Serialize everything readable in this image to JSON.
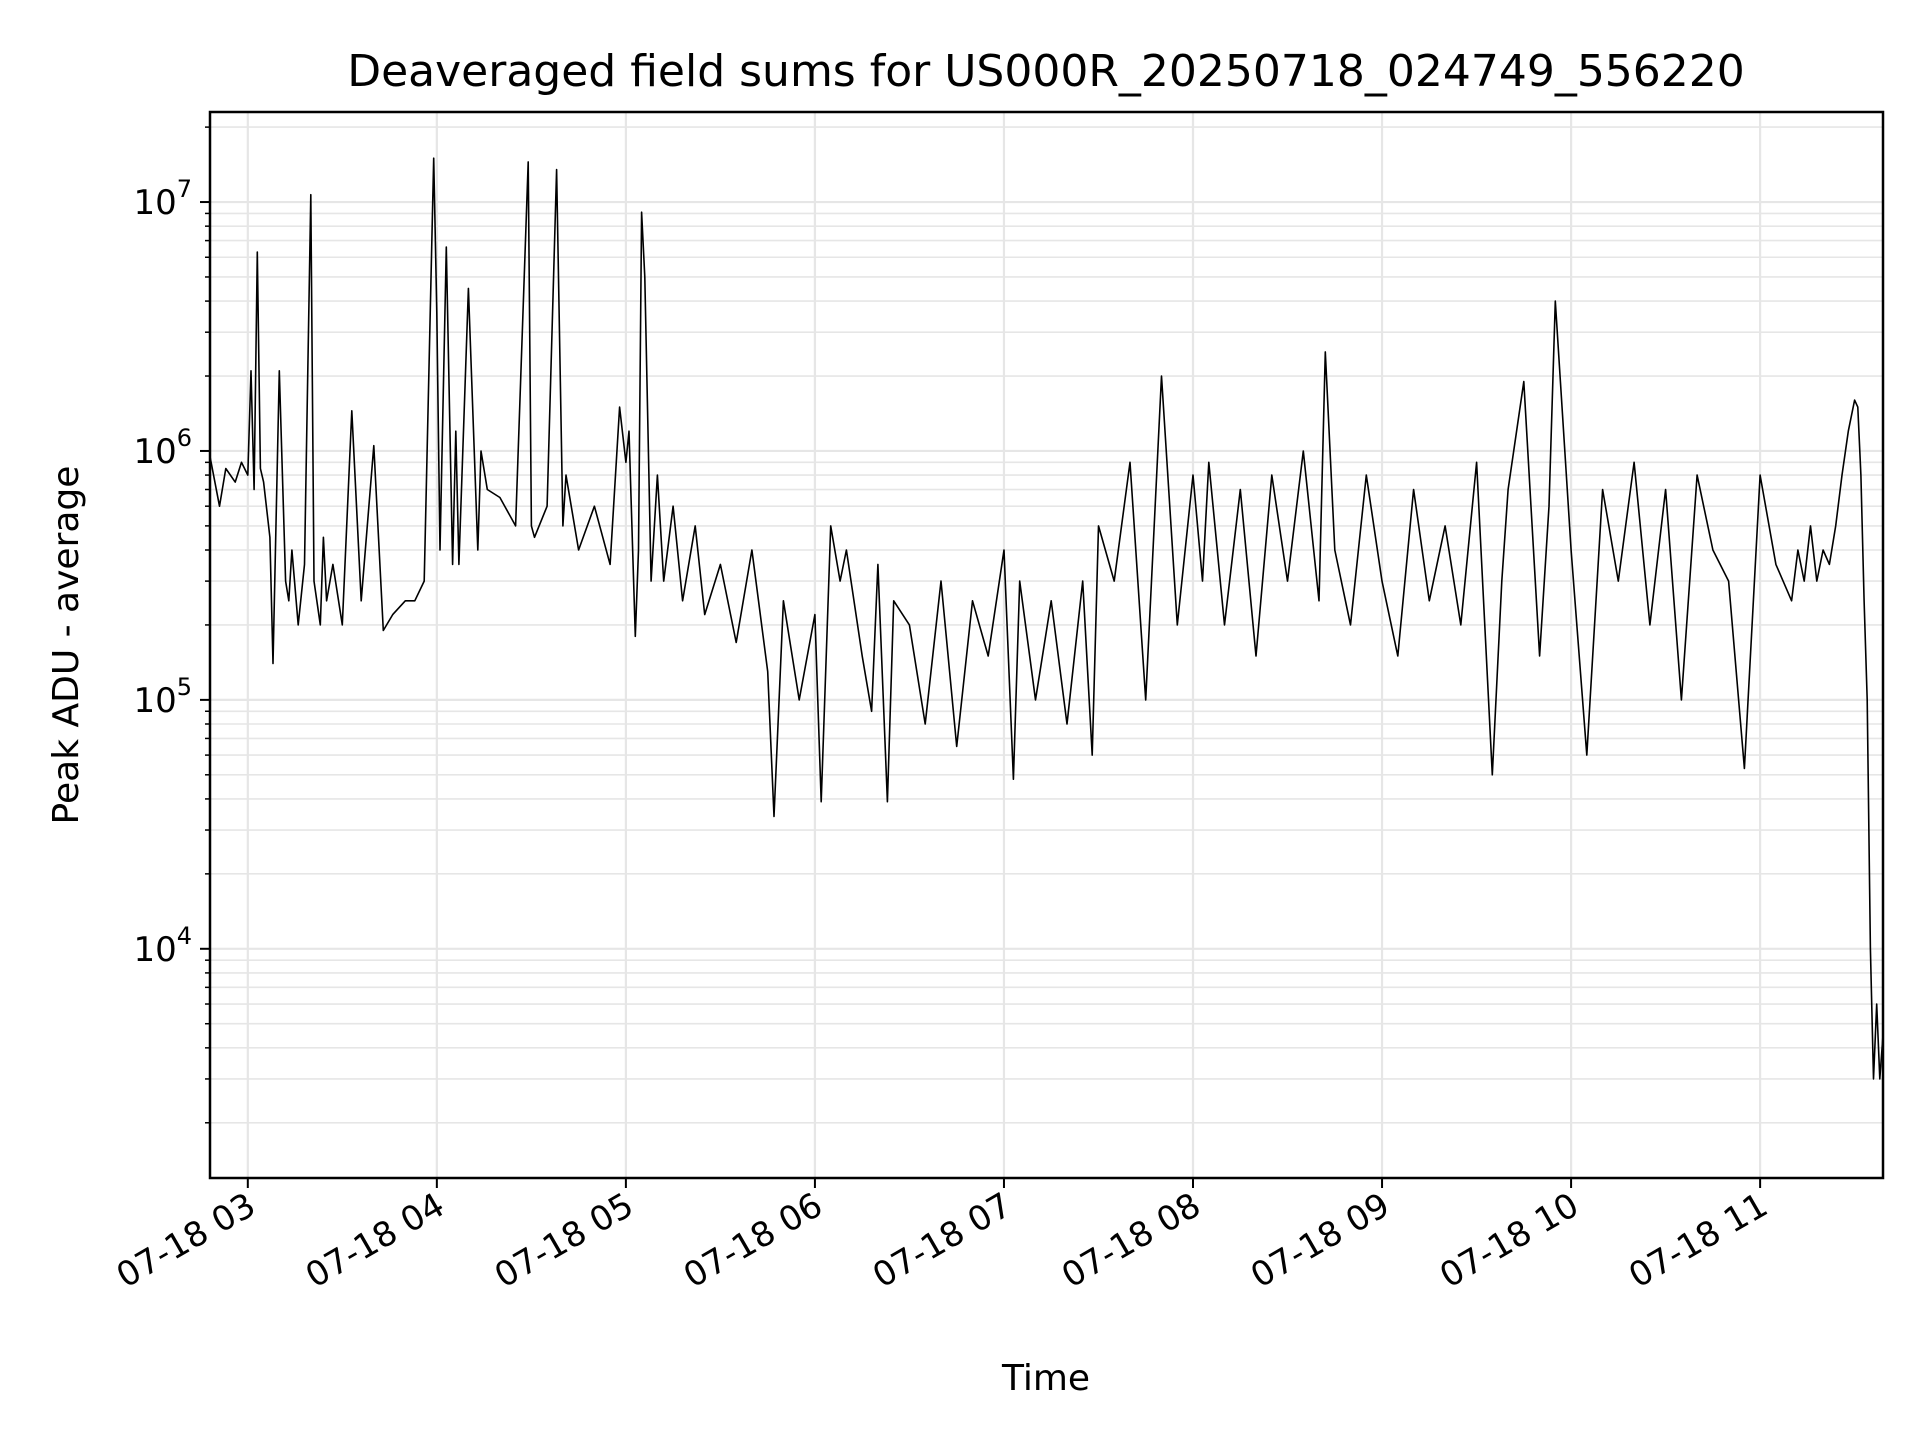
{
  "chart_data": {
    "type": "line",
    "title": "Deaveraged field sums for US000R_20250718_024749_556220",
    "xlabel": "Time",
    "ylabel": "Peak ADU - average",
    "y_scale": "log",
    "ylim": [
      1200,
      23000000
    ],
    "xlim": [
      "07-18 02:48",
      "07-18 11:39"
    ],
    "grid": true,
    "line_color": "#000000",
    "grid_color": "#e6e6e6",
    "x_ticks": [
      {
        "label": "07-18 03",
        "time": "07-18 03:00"
      },
      {
        "label": "07-18 04",
        "time": "07-18 04:00"
      },
      {
        "label": "07-18 05",
        "time": "07-18 05:00"
      },
      {
        "label": "07-18 06",
        "time": "07-18 06:00"
      },
      {
        "label": "07-18 07",
        "time": "07-18 07:00"
      },
      {
        "label": "07-18 08",
        "time": "07-18 08:00"
      },
      {
        "label": "07-18 09",
        "time": "07-18 09:00"
      },
      {
        "label": "07-18 10",
        "time": "07-18 10:00"
      },
      {
        "label": "07-18 11",
        "time": "07-18 11:00"
      }
    ],
    "y_ticks": [
      {
        "base": "10",
        "exp": "4",
        "value": 10000
      },
      {
        "base": "10",
        "exp": "5",
        "value": 100000
      },
      {
        "base": "10",
        "exp": "6",
        "value": 1000000
      },
      {
        "base": "10",
        "exp": "7",
        "value": 10000000
      }
    ],
    "series": [
      {
        "x": [
          "07-18 02:48",
          "07-18 02:51",
          "07-18 02:53",
          "07-18 02:56",
          "07-18 02:58",
          "07-18 03:00",
          "07-18 03:01",
          "07-18 03:02",
          "07-18 03:03",
          "07-18 03:04",
          "07-18 03:05",
          "07-18 03:07",
          "07-18 03:08",
          "07-18 03:10",
          "07-18 03:12",
          "07-18 03:13",
          "07-18 03:14",
          "07-18 03:16",
          "07-18 03:18",
          "07-18 03:20",
          "07-18 03:21",
          "07-18 03:23",
          "07-18 03:24",
          "07-18 03:25",
          "07-18 03:27",
          "07-18 03:30",
          "07-18 03:33",
          "07-18 03:36",
          "07-18 03:40",
          "07-18 03:43",
          "07-18 03:46",
          "07-18 03:50",
          "07-18 03:53",
          "07-18 03:56",
          "07-18 03:59",
          "07-18 04:00",
          "07-18 04:01",
          "07-18 04:03",
          "07-18 04:05",
          "07-18 04:06",
          "07-18 04:07",
          "07-18 04:10",
          "07-18 04:13",
          "07-18 04:14",
          "07-18 04:16",
          "07-18 04:20",
          "07-18 04:25",
          "07-18 04:29",
          "07-18 04:30",
          "07-18 04:31",
          "07-18 04:35",
          "07-18 04:38",
          "07-18 04:40",
          "07-18 04:41",
          "07-18 04:45",
          "07-18 04:50",
          "07-18 04:55",
          "07-18 04:58",
          "07-18 05:00",
          "07-18 05:01",
          "07-18 05:03",
          "07-18 05:04",
          "07-18 05:05",
          "07-18 05:06",
          "07-18 05:08",
          "07-18 05:10",
          "07-18 05:12",
          "07-18 05:15",
          "07-18 05:18",
          "07-18 05:22",
          "07-18 05:25",
          "07-18 05:30",
          "07-18 05:35",
          "07-18 05:40",
          "07-18 05:45",
          "07-18 05:47",
          "07-18 05:50",
          "07-18 05:55",
          "07-18 06:00",
          "07-18 06:02",
          "07-18 06:05",
          "07-18 06:08",
          "07-18 06:10",
          "07-18 06:15",
          "07-18 06:18",
          "07-18 06:20",
          "07-18 06:23",
          "07-18 06:25",
          "07-18 06:30",
          "07-18 06:35",
          "07-18 06:40",
          "07-18 06:45",
          "07-18 06:50",
          "07-18 06:55",
          "07-18 07:00",
          "07-18 07:03",
          "07-18 07:05",
          "07-18 07:10",
          "07-18 07:15",
          "07-18 07:20",
          "07-18 07:25",
          "07-18 07:28",
          "07-18 07:30",
          "07-18 07:35",
          "07-18 07:40",
          "07-18 07:45",
          "07-18 07:50",
          "07-18 07:55",
          "07-18 08:00",
          "07-18 08:03",
          "07-18 08:05",
          "07-18 08:10",
          "07-18 08:15",
          "07-18 08:20",
          "07-18 08:25",
          "07-18 08:30",
          "07-18 08:35",
          "07-18 08:40",
          "07-18 08:42",
          "07-18 08:45",
          "07-18 08:50",
          "07-18 08:55",
          "07-18 09:00",
          "07-18 09:05",
          "07-18 09:10",
          "07-18 09:15",
          "07-18 09:20",
          "07-18 09:25",
          "07-18 09:30",
          "07-18 09:35",
          "07-18 09:38",
          "07-18 09:40",
          "07-18 09:45",
          "07-18 09:50",
          "07-18 09:53",
          "07-18 09:55",
          "07-18 10:00",
          "07-18 10:05",
          "07-18 10:10",
          "07-18 10:15",
          "07-18 10:20",
          "07-18 10:25",
          "07-18 10:30",
          "07-18 10:35",
          "07-18 10:40",
          "07-18 10:45",
          "07-18 10:50",
          "07-18 10:55",
          "07-18 11:00",
          "07-18 11:05",
          "07-18 11:10",
          "07-18 11:12",
          "07-18 11:14",
          "07-18 11:16",
          "07-18 11:18",
          "07-18 11:20",
          "07-18 11:22",
          "07-18 11:24",
          "07-18 11:26",
          "07-18 11:28",
          "07-18 11:30",
          "07-18 11:31",
          "07-18 11:32",
          "07-18 11:33",
          "07-18 11:34",
          "07-18 11:35",
          "07-18 11:36",
          "07-18 11:37",
          "07-18 11:38",
          "07-18 11:39"
        ],
        "values": [
          950000,
          600000,
          850000,
          750000,
          900000,
          800000,
          2100000,
          700000,
          6300000,
          850000,
          750000,
          450000,
          140000,
          2100000,
          300000,
          250000,
          400000,
          200000,
          350000,
          10700000,
          300000,
          200000,
          450000,
          250000,
          350000,
          200000,
          1450000,
          250000,
          1050000,
          190000,
          220000,
          250000,
          250000,
          300000,
          15000000,
          3600000,
          400000,
          6600000,
          350000,
          1200000,
          350000,
          4500000,
          400000,
          1000000,
          700000,
          650000,
          500000,
          14500000,
          500000,
          450000,
          600000,
          13500000,
          500000,
          800000,
          400000,
          600000,
          350000,
          1500000,
          900000,
          1200000,
          180000,
          400000,
          9100000,
          5000000,
          300000,
          800000,
          300000,
          600000,
          250000,
          500000,
          220000,
          350000,
          170000,
          400000,
          130000,
          34000,
          250000,
          100000,
          220000,
          39000,
          500000,
          300000,
          400000,
          150000,
          90000,
          350000,
          39000,
          250000,
          200000,
          80000,
          300000,
          65000,
          250000,
          150000,
          400000,
          48000,
          300000,
          100000,
          250000,
          80000,
          300000,
          60000,
          500000,
          300000,
          900000,
          100000,
          2000000,
          200000,
          800000,
          300000,
          900000,
          200000,
          700000,
          150000,
          800000,
          300000,
          1000000,
          250000,
          2500000,
          400000,
          200000,
          800000,
          300000,
          150000,
          700000,
          250000,
          500000,
          200000,
          900000,
          50000,
          300000,
          700000,
          1900000,
          150000,
          600000,
          4000000,
          400000,
          60000,
          700000,
          300000,
          900000,
          200000,
          700000,
          100000,
          800000,
          400000,
          300000,
          53000,
          800000,
          350000,
          250000,
          400000,
          300000,
          500000,
          300000,
          400000,
          350000,
          500000,
          800000,
          1200000,
          1600000,
          1500000,
          800000,
          250000,
          100000,
          10000,
          3000,
          6000,
          3000,
          4500
        ]
      }
    ]
  }
}
